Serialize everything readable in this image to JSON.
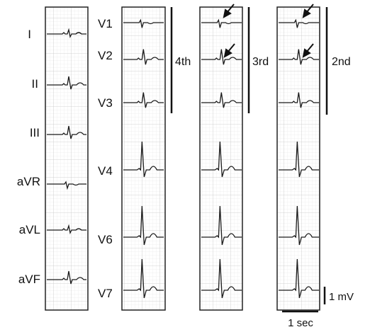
{
  "limb_panel": {
    "leads": [
      "I",
      "II",
      "III",
      "aVR",
      "aVL",
      "aVF"
    ]
  },
  "chest_panel": {
    "leads": [
      "V1",
      "V2",
      "V3",
      "V4",
      "V6",
      "V7"
    ]
  },
  "strip_panels": [
    {
      "name": "4th",
      "label": "4th",
      "arrows": false
    },
    {
      "name": "3rd",
      "label": "3rd",
      "arrows": true
    },
    {
      "name": "2nd",
      "label": "2nd",
      "arrows": true
    }
  ],
  "calibration": {
    "amplitude_label": "1 mV",
    "time_label": "1 sec"
  },
  "colors": {
    "trace": "#1a1a1a",
    "grid": "#cfcfcf",
    "panel_border": "#222222"
  }
}
